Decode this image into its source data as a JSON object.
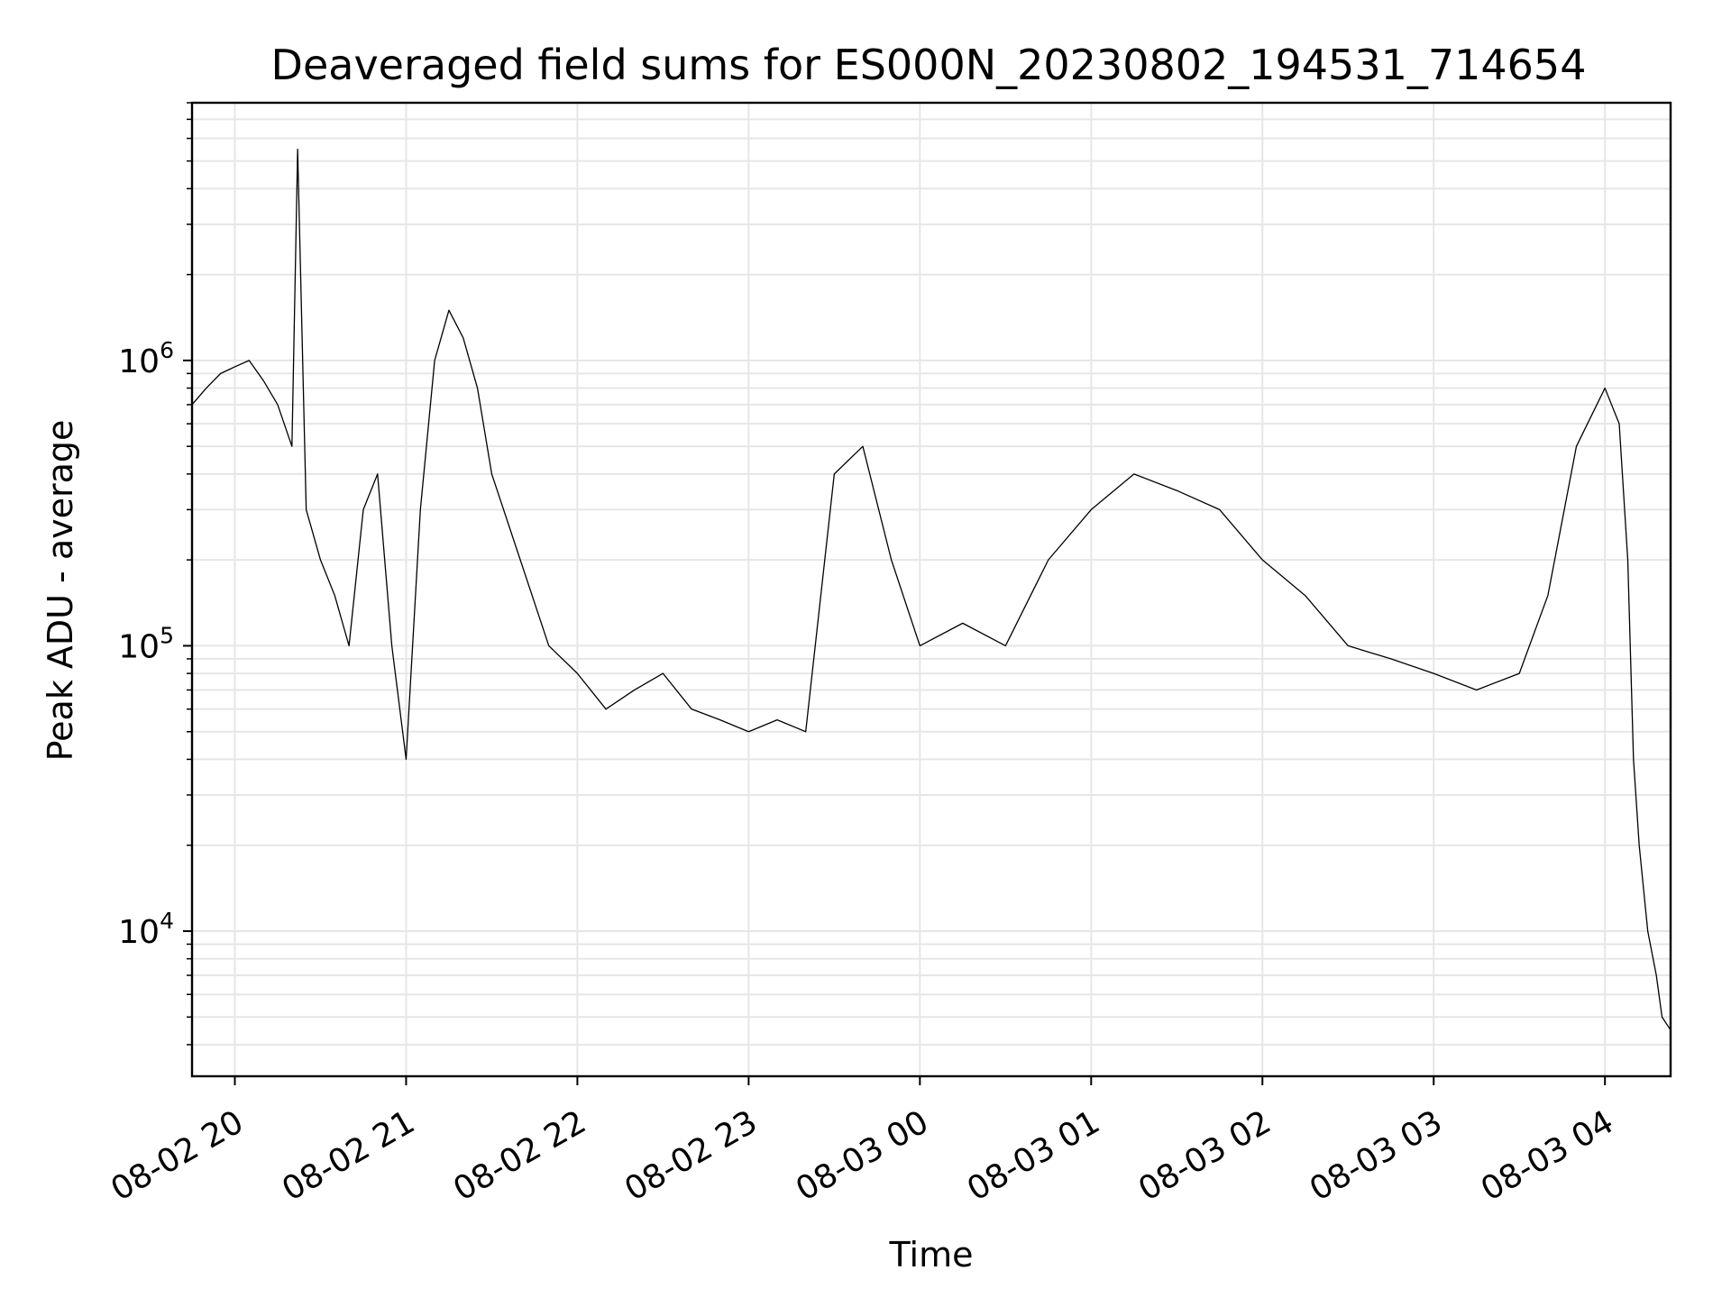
{
  "chart_data": {
    "type": "line",
    "title": "Deaveraged field sums for ES000N_20230802_194531_714654",
    "xlabel": "Time",
    "ylabel": "Peak ADU - average",
    "y_scale": "log",
    "ylim": [
      3100,
      8000000
    ],
    "xlim": [
      "2023-08-02 19:45",
      "2023-08-03 04:23"
    ],
    "grid": true,
    "line_color": "#000000",
    "grid_color": "#e6e6e6",
    "x_ticks": [
      {
        "value": "2023-08-02 20:00",
        "label": "08-02 20"
      },
      {
        "value": "2023-08-02 21:00",
        "label": "08-02 21"
      },
      {
        "value": "2023-08-02 22:00",
        "label": "08-02 22"
      },
      {
        "value": "2023-08-02 23:00",
        "label": "08-02 23"
      },
      {
        "value": "2023-08-03 00:00",
        "label": "08-03 00"
      },
      {
        "value": "2023-08-03 01:00",
        "label": "08-03 01"
      },
      {
        "value": "2023-08-03 02:00",
        "label": "08-03 02"
      },
      {
        "value": "2023-08-03 03:00",
        "label": "08-03 03"
      },
      {
        "value": "2023-08-03 04:00",
        "label": "08-03 04"
      }
    ],
    "y_ticks": [
      {
        "value": 10000,
        "base": "10",
        "exp": "4"
      },
      {
        "value": 100000,
        "base": "10",
        "exp": "5"
      },
      {
        "value": 1000000,
        "base": "10",
        "exp": "6"
      }
    ],
    "series": [
      {
        "points": [
          [
            "2023-08-02 19:45",
            700000
          ],
          [
            "2023-08-02 19:50",
            800000
          ],
          [
            "2023-08-02 19:55",
            900000
          ],
          [
            "2023-08-02 20:00",
            950000
          ],
          [
            "2023-08-02 20:05",
            1000000
          ],
          [
            "2023-08-02 20:10",
            850000
          ],
          [
            "2023-08-02 20:15",
            700000
          ],
          [
            "2023-08-02 20:20",
            500000
          ],
          [
            "2023-08-02 20:22",
            5500000
          ],
          [
            "2023-08-02 20:25",
            300000
          ],
          [
            "2023-08-02 20:30",
            200000
          ],
          [
            "2023-08-02 20:35",
            150000
          ],
          [
            "2023-08-02 20:40",
            100000
          ],
          [
            "2023-08-02 20:45",
            300000
          ],
          [
            "2023-08-02 20:50",
            400000
          ],
          [
            "2023-08-02 20:55",
            100000
          ],
          [
            "2023-08-02 21:00",
            40000
          ],
          [
            "2023-08-02 21:05",
            300000
          ],
          [
            "2023-08-02 21:10",
            1000000
          ],
          [
            "2023-08-02 21:15",
            1500000
          ],
          [
            "2023-08-02 21:20",
            1200000
          ],
          [
            "2023-08-02 21:25",
            800000
          ],
          [
            "2023-08-02 21:30",
            400000
          ],
          [
            "2023-08-02 21:40",
            200000
          ],
          [
            "2023-08-02 21:50",
            100000
          ],
          [
            "2023-08-02 22:00",
            80000
          ],
          [
            "2023-08-02 22:10",
            60000
          ],
          [
            "2023-08-02 22:20",
            70000
          ],
          [
            "2023-08-02 22:30",
            80000
          ],
          [
            "2023-08-02 22:40",
            60000
          ],
          [
            "2023-08-02 22:50",
            55000
          ],
          [
            "2023-08-02 23:00",
            50000
          ],
          [
            "2023-08-02 23:10",
            55000
          ],
          [
            "2023-08-02 23:20",
            50000
          ],
          [
            "2023-08-02 23:30",
            400000
          ],
          [
            "2023-08-02 23:40",
            500000
          ],
          [
            "2023-08-02 23:50",
            200000
          ],
          [
            "2023-08-03 00:00",
            100000
          ],
          [
            "2023-08-03 00:15",
            120000
          ],
          [
            "2023-08-03 00:30",
            100000
          ],
          [
            "2023-08-03 00:45",
            200000
          ],
          [
            "2023-08-03 01:00",
            300000
          ],
          [
            "2023-08-03 01:15",
            400000
          ],
          [
            "2023-08-03 01:30",
            350000
          ],
          [
            "2023-08-03 01:45",
            300000
          ],
          [
            "2023-08-03 02:00",
            200000
          ],
          [
            "2023-08-03 02:15",
            150000
          ],
          [
            "2023-08-03 02:30",
            100000
          ],
          [
            "2023-08-03 02:45",
            90000
          ],
          [
            "2023-08-03 03:00",
            80000
          ],
          [
            "2023-08-03 03:15",
            70000
          ],
          [
            "2023-08-03 03:30",
            80000
          ],
          [
            "2023-08-03 03:40",
            150000
          ],
          [
            "2023-08-03 03:50",
            500000
          ],
          [
            "2023-08-03 04:00",
            800000
          ],
          [
            "2023-08-03 04:05",
            600000
          ],
          [
            "2023-08-03 04:08",
            200000
          ],
          [
            "2023-08-03 04:10",
            40000
          ],
          [
            "2023-08-03 04:12",
            20000
          ],
          [
            "2023-08-03 04:15",
            10000
          ],
          [
            "2023-08-03 04:18",
            7000
          ],
          [
            "2023-08-03 04:20",
            5000
          ],
          [
            "2023-08-03 04:23",
            4500
          ]
        ]
      }
    ]
  }
}
